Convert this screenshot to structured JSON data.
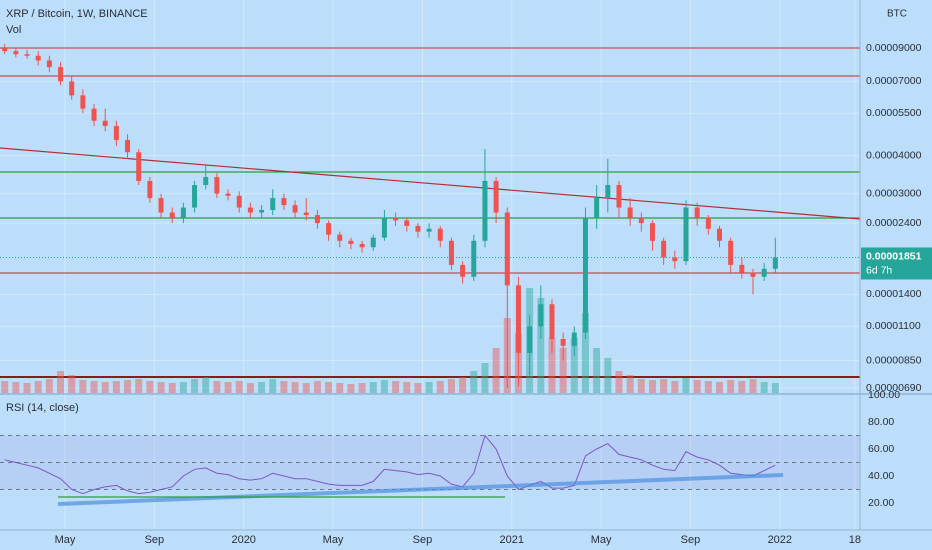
{
  "chart_data": {
    "type": "candlestick",
    "title": "XRP / Bitcoin, 1W, BINANCE",
    "volume_label": "Vol",
    "unit": "BTC",
    "countdown": "6d 7h",
    "up_color": "#26a69a",
    "down_color": "#ef5350",
    "log_scale": true,
    "grid": true,
    "x": [
      1.3,
      1.8,
      2.3,
      2.8,
      3.3,
      3.8,
      4.3,
      4.8,
      5.3,
      5.8,
      6.3,
      6.8,
      7.3,
      7.8,
      8.3,
      8.8,
      9.3,
      9.8,
      10.3,
      10.8,
      11.3,
      11.8,
      12.3,
      12.8,
      13.3,
      13.8,
      14.3,
      14.8,
      15.3,
      15.8,
      16.3,
      16.8,
      17.3,
      17.8,
      18.3,
      18.8,
      19.3,
      19.8,
      20.3,
      20.8,
      21.3,
      21.8,
      22.3,
      22.8,
      23.3,
      23.8,
      24.3,
      24.8,
      25.3,
      25.8,
      26.3,
      26.8,
      27.3,
      27.8,
      28.3,
      28.8,
      29.3,
      29.8,
      30.3,
      30.8,
      31.3,
      31.8,
      32.3,
      32.8,
      33.3,
      33.8,
      34.3,
      34.8,
      35.3,
      35.8
    ],
    "candles": [
      [
        9e-05,
        9.3e-05,
        8.6e-05,
        8.8e-05
      ],
      [
        8.8e-05,
        9e-05,
        8.4e-05,
        8.6e-05
      ],
      [
        8.6e-05,
        8.9e-05,
        8.3e-05,
        8.5e-05
      ],
      [
        8.5e-05,
        8.8e-05,
        7.9e-05,
        8.2e-05
      ],
      [
        8.2e-05,
        8.5e-05,
        7.5e-05,
        7.8e-05
      ],
      [
        7.8e-05,
        8.1e-05,
        6.8e-05,
        7e-05
      ],
      [
        7e-05,
        7.3e-05,
        6.1e-05,
        6.3e-05
      ],
      [
        6.3e-05,
        6.6e-05,
        5.5e-05,
        5.7e-05
      ],
      [
        5.7e-05,
        5.9e-05,
        5e-05,
        5.2e-05
      ],
      [
        5.2e-05,
        5.7e-05,
        4.8e-05,
        5e-05
      ],
      [
        5e-05,
        5.2e-05,
        4.3e-05,
        4.5e-05
      ],
      [
        4.5e-05,
        4.7e-05,
        3.9e-05,
        4.1e-05
      ],
      [
        4.1e-05,
        4.2e-05,
        3.2e-05,
        3.3e-05
      ],
      [
        3.3e-05,
        3.4e-05,
        2.8e-05,
        2.9e-05
      ],
      [
        2.9e-05,
        3e-05,
        2.5e-05,
        2.6e-05
      ],
      [
        2.6e-05,
        2.7e-05,
        2.4e-05,
        2.5e-05
      ],
      [
        2.5e-05,
        2.8e-05,
        2.4e-05,
        2.7e-05
      ],
      [
        2.7e-05,
        3.3e-05,
        2.6e-05,
        3.2e-05
      ],
      [
        3.2e-05,
        3.7e-05,
        3.1e-05,
        3.4e-05
      ],
      [
        3.4e-05,
        3.5e-05,
        2.9e-05,
        3e-05
      ],
      [
        3e-05,
        3.1e-05,
        2.85e-05,
        2.95e-05
      ],
      [
        2.95e-05,
        3.05e-05,
        2.6e-05,
        2.7e-05
      ],
      [
        2.7e-05,
        2.8e-05,
        2.5e-05,
        2.6e-05
      ],
      [
        2.6e-05,
        2.75e-05,
        2.5e-05,
        2.65e-05
      ],
      [
        2.65e-05,
        3.1e-05,
        2.55e-05,
        2.9e-05
      ],
      [
        2.9e-05,
        3e-05,
        2.65e-05,
        2.75e-05
      ],
      [
        2.75e-05,
        2.85e-05,
        2.5e-05,
        2.6e-05
      ],
      [
        2.6e-05,
        2.9e-05,
        2.45e-05,
        2.55e-05
      ],
      [
        2.55e-05,
        2.65e-05,
        2.3e-05,
        2.4e-05
      ],
      [
        2.4e-05,
        2.45e-05,
        2.1e-05,
        2.2e-05
      ],
      [
        2.2e-05,
        2.25e-05,
        2e-05,
        2.1e-05
      ],
      [
        2.1e-05,
        2.15e-05,
        1.97e-05,
        2.05e-05
      ],
      [
        2.05e-05,
        2.1e-05,
        1.92e-05,
        2e-05
      ],
      [
        2e-05,
        2.2e-05,
        1.95e-05,
        2.15e-05
      ],
      [
        2.15e-05,
        2.65e-05,
        2.1e-05,
        2.5e-05
      ],
      [
        2.5e-05,
        2.6e-05,
        2.35e-05,
        2.45e-05
      ],
      [
        2.45e-05,
        2.5e-05,
        2.25e-05,
        2.35e-05
      ],
      [
        2.35e-05,
        2.4e-05,
        2.15e-05,
        2.25e-05
      ],
      [
        2.25e-05,
        2.4e-05,
        2.15e-05,
        2.3e-05
      ],
      [
        2.3e-05,
        2.35e-05,
        2e-05,
        2.1e-05
      ],
      [
        2.1e-05,
        2.15e-05,
        1.68e-05,
        1.75e-05
      ],
      [
        1.75e-05,
        1.8e-05,
        1.52e-05,
        1.6e-05
      ],
      [
        1.6e-05,
        2.2e-05,
        1.55e-05,
        2.1e-05
      ],
      [
        2.1e-05,
        4.2e-05,
        2e-05,
        3.3e-05
      ],
      [
        3.3e-05,
        3.4e-05,
        2.4e-05,
        2.6e-05
      ],
      [
        2.6e-05,
        2.7e-05,
        6.9e-06,
        1.5e-05
      ],
      [
        1.5e-05,
        1.6e-05,
        7e-06,
        9e-06
      ],
      [
        9e-06,
        1.2e-05,
        7.6e-06,
        1.1e-05
      ],
      [
        1.1e-05,
        1.5e-05,
        1e-05,
        1.3e-05
      ],
      [
        1.3e-05,
        1.35e-05,
        9e-06,
        1e-05
      ],
      [
        1e-05,
        1.05e-05,
        8.5e-06,
        9.5e-06
      ],
      [
        9.5e-06,
        1.1e-05,
        8.8e-06,
        1.05e-05
      ],
      [
        1.05e-05,
        2.7e-05,
        1e-05,
        2.5e-05
      ],
      [
        2.5e-05,
        3.2e-05,
        2.3e-05,
        2.9e-05
      ],
      [
        2.9e-05,
        3.9e-05,
        2.6e-05,
        3.2e-05
      ],
      [
        3.2e-05,
        3.3e-05,
        2.5e-05,
        2.7e-05
      ],
      [
        2.7e-05,
        2.9e-05,
        2.35e-05,
        2.5e-05
      ],
      [
        2.5e-05,
        2.6e-05,
        2.25e-05,
        2.4e-05
      ],
      [
        2.4e-05,
        2.45e-05,
        1.95e-05,
        2.1e-05
      ],
      [
        2.1e-05,
        2.15e-05,
        1.75e-05,
        1.85e-05
      ],
      [
        1.85e-05,
        1.95e-05,
        1.7e-05,
        1.8e-05
      ],
      [
        1.8e-05,
        2.85e-05,
        1.75e-05,
        2.7e-05
      ],
      [
        2.7e-05,
        2.8e-05,
        2.35e-05,
        2.5e-05
      ],
      [
        2.5e-05,
        2.55e-05,
        2.2e-05,
        2.3e-05
      ],
      [
        2.3e-05,
        2.35e-05,
        2e-05,
        2.1e-05
      ],
      [
        2.1e-05,
        2.15e-05,
        1.65e-05,
        1.75e-05
      ],
      [
        1.75e-05,
        1.85e-05,
        1.58e-05,
        1.65e-05
      ],
      [
        1.65e-05,
        1.7e-05,
        1.4e-05,
        1.6e-05
      ],
      [
        1.6e-05,
        1.78e-05,
        1.55e-05,
        1.7e-05
      ],
      [
        1.7e-05,
        2.15e-05,
        1.65e-05,
        1.851e-05
      ]
    ],
    "volume": [
      12,
      11,
      10,
      12,
      14,
      22,
      18,
      13,
      12,
      11,
      12,
      13,
      14,
      12,
      11,
      10,
      11,
      14,
      16,
      12,
      11,
      12,
      10,
      11,
      14,
      12,
      11,
      10,
      12,
      11,
      10,
      9,
      10,
      11,
      13,
      12,
      11,
      10,
      11,
      12,
      14,
      16,
      22,
      30,
      45,
      75,
      60,
      105,
      95,
      55,
      45,
      55,
      80,
      45,
      35,
      22,
      18,
      14,
      13,
      14,
      12,
      15,
      13,
      12,
      11,
      13,
      12,
      14,
      11,
      10
    ],
    "ylim": [
      6.65e-06,
      0.0001295
    ],
    "yticks": [
      {
        "value": 9e-05,
        "label": "0.00009000"
      },
      {
        "value": 7e-05,
        "label": "0.00007000"
      },
      {
        "value": 5.5e-05,
        "label": "0.00005500"
      },
      {
        "value": 4e-05,
        "label": "0.00004000"
      },
      {
        "value": 3e-05,
        "label": "0.00003000"
      },
      {
        "value": 2.4e-05,
        "label": "0.00002400"
      },
      {
        "value": 1.4e-05,
        "label": "0.00001400"
      },
      {
        "value": 1.1e-05,
        "label": "0.00001100"
      },
      {
        "value": 8.5e-06,
        "label": "0.00000850"
      },
      {
        "value": 6.9e-06,
        "label": "0.00000690"
      }
    ],
    "xlim": [
      1.09,
      39.59
    ],
    "xticks": [
      {
        "value": 4,
        "label": "May"
      },
      {
        "value": 8,
        "label": "Sep"
      },
      {
        "value": 12,
        "label": "2020"
      },
      {
        "value": 16,
        "label": "May"
      },
      {
        "value": 20,
        "label": "Sep"
      },
      {
        "value": 24,
        "label": "2021"
      },
      {
        "value": 28,
        "label": "May"
      },
      {
        "value": 32,
        "label": "Sep"
      },
      {
        "value": 36,
        "label": "2022"
      },
      {
        "value": 39.36,
        "label": "18"
      }
    ],
    "rsi": {
      "title": "RSI (14, close)",
      "color": "#7e57c2",
      "values": [
        52,
        50,
        48,
        46,
        42,
        38,
        30,
        27,
        30,
        32,
        33,
        29,
        27,
        28,
        30,
        32,
        40,
        45,
        46,
        42,
        41,
        38,
        37,
        38,
        42,
        40,
        38,
        38,
        36,
        34,
        33,
        33,
        33,
        36,
        45,
        44,
        43,
        41,
        42,
        40,
        34,
        32,
        42,
        70,
        60,
        40,
        30,
        33,
        36,
        31,
        31,
        33,
        55,
        60,
        64,
        56,
        54,
        52,
        48,
        45,
        44,
        58,
        54,
        52,
        48,
        42,
        41,
        40,
        44,
        48
      ],
      "ylim": [
        0,
        100
      ],
      "yticks": [
        {
          "value": 100,
          "label": "100.00"
        },
        {
          "value": 80,
          "label": "80.00"
        },
        {
          "value": 60,
          "label": "60.00"
        },
        {
          "value": 40,
          "label": "40.00"
        },
        {
          "value": 20,
          "label": "20.00"
        }
      ],
      "levels": [
        70,
        50,
        30
      ]
    }
  }
}
